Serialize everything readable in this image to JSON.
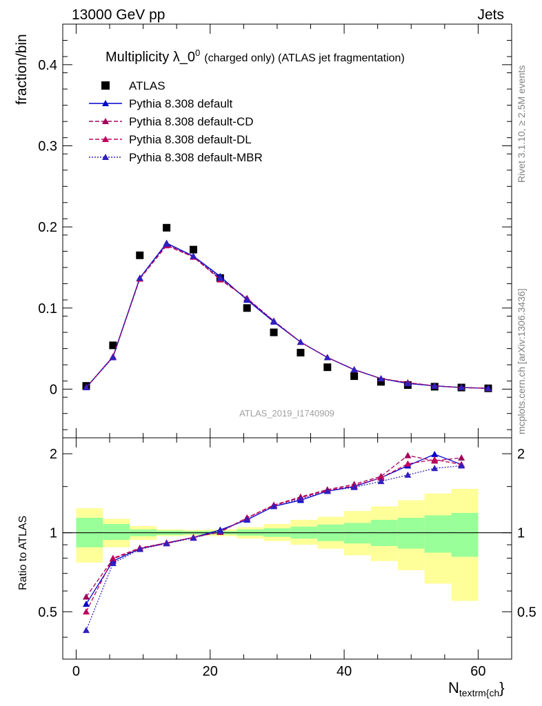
{
  "header": {
    "left": "13000 GeV pp",
    "right": "Jets"
  },
  "title": {
    "main": "Multiplicity λ_0",
    "sup": "0",
    "tail": "(charged only) (ATLAS jet fragmentation)"
  },
  "side_labels": {
    "rivet": "Rivet 3.1.10, ≥ 2.5M events",
    "mcplots": "mcplots.cern.ch [arXiv:1306.3436]"
  },
  "watermark": "ATLAS_2019_I1740909",
  "colors": {
    "data": "#000000",
    "default": "#0000cc",
    "cd": "#a0005a",
    "dl": "#c0005a",
    "mbr": "#3020c0",
    "band_inner": "#99ff99",
    "band_outer": "#ffff99"
  },
  "chart_data": [
    {
      "type": "scatter",
      "panel": "main",
      "ylabel": "fraction/bin",
      "xlim": [
        -2,
        65
      ],
      "ylim": [
        -0.06,
        0.45
      ],
      "yticks": [
        0,
        0.1,
        0.2,
        0.3,
        0.4
      ],
      "ytick_labels": [
        "0",
        "0.1",
        "0.2",
        "0.3",
        "0.4"
      ],
      "x": [
        1.5,
        5.5,
        9.5,
        13.5,
        17.5,
        21.5,
        25.5,
        29.5,
        33.5,
        37.5,
        41.5,
        45.5,
        49.5,
        53.5,
        57.5,
        61.5
      ],
      "series": [
        {
          "name": "ATLAS",
          "key": "data",
          "style": "square",
          "values": [
            0.004,
            0.054,
            0.165,
            0.199,
            0.172,
            0.137,
            0.1,
            0.07,
            0.045,
            0.027,
            0.016,
            0.009,
            0.005,
            0.003,
            0.002,
            0.001
          ]
        },
        {
          "name": "Pythia 8.308 default",
          "key": "default",
          "style": "solid",
          "values": [
            0.002,
            0.04,
            0.137,
            0.18,
            0.164,
            0.139,
            0.11,
            0.083,
            0.058,
            0.039,
            0.024,
            0.013,
            0.007,
            0.004,
            0.002,
            0.001
          ]
        },
        {
          "name": "Pythia 8.308 default-CD",
          "key": "cd",
          "style": "dashed",
          "values": [
            0.002,
            0.04,
            0.136,
            0.178,
            0.163,
            0.136,
            0.112,
            0.084,
            0.058,
            0.039,
            0.024,
            0.013,
            0.008,
            0.004,
            0.002,
            0.001
          ]
        },
        {
          "name": "Pythia 8.308 default-DL",
          "key": "dl",
          "style": "dashed",
          "values": [
            0.002,
            0.04,
            0.136,
            0.177,
            0.163,
            0.135,
            0.112,
            0.084,
            0.058,
            0.039,
            0.024,
            0.013,
            0.008,
            0.004,
            0.002,
            0.001
          ]
        },
        {
          "name": "Pythia 8.308 default-MBR",
          "key": "mbr",
          "style": "dotted",
          "values": [
            0.002,
            0.039,
            0.137,
            0.179,
            0.164,
            0.137,
            0.111,
            0.084,
            0.058,
            0.039,
            0.024,
            0.013,
            0.007,
            0.004,
            0.002,
            0.001
          ]
        }
      ]
    },
    {
      "type": "line",
      "panel": "ratio",
      "ylabel": "Ratio to ATLAS",
      "xlabel": "N_textrm{ch}",
      "xlim": [
        -2,
        65
      ],
      "ylim": [
        0.33,
        2.3
      ],
      "yticks": [
        0.5,
        1,
        2
      ],
      "ytick_labels": [
        "0.5",
        "1",
        "2"
      ],
      "xticks": [
        0,
        20,
        40,
        60
      ],
      "xtick_labels": [
        "0",
        "20",
        "40",
        "60"
      ],
      "bins": [
        [
          0,
          4
        ],
        [
          4,
          8
        ],
        [
          8,
          12
        ],
        [
          12,
          16
        ],
        [
          16,
          20
        ],
        [
          20,
          24
        ],
        [
          24,
          28
        ],
        [
          28,
          32
        ],
        [
          32,
          36
        ],
        [
          36,
          40
        ],
        [
          40,
          44
        ],
        [
          44,
          48
        ],
        [
          48,
          52
        ],
        [
          52,
          56
        ],
        [
          56,
          60
        ]
      ],
      "band_inner": [
        [
          0.88,
          1.14
        ],
        [
          0.94,
          1.08
        ],
        [
          0.97,
          1.03
        ],
        [
          0.98,
          1.02
        ],
        [
          0.985,
          1.015
        ],
        [
          0.985,
          1.015
        ],
        [
          0.975,
          1.03
        ],
        [
          0.965,
          1.04
        ],
        [
          0.95,
          1.055
        ],
        [
          0.93,
          1.075
        ],
        [
          0.91,
          1.09
        ],
        [
          0.89,
          1.12
        ],
        [
          0.87,
          1.14
        ],
        [
          0.84,
          1.165
        ],
        [
          0.81,
          1.19
        ]
      ],
      "band_outer": [
        [
          0.77,
          1.24
        ],
        [
          0.88,
          1.13
        ],
        [
          0.94,
          1.06
        ],
        [
          0.97,
          1.03
        ],
        [
          0.975,
          1.025
        ],
        [
          0.97,
          1.03
        ],
        [
          0.95,
          1.05
        ],
        [
          0.93,
          1.08
        ],
        [
          0.9,
          1.12
        ],
        [
          0.87,
          1.15
        ],
        [
          0.82,
          1.21
        ],
        [
          0.78,
          1.26
        ],
        [
          0.72,
          1.33
        ],
        [
          0.64,
          1.41
        ],
        [
          0.55,
          1.47
        ]
      ],
      "series": [
        {
          "name": "Pythia 8.308 default",
          "key": "default",
          "values": [
            0.535,
            0.78,
            0.87,
            0.915,
            0.96,
            1.025,
            1.12,
            1.26,
            1.33,
            1.44,
            1.5,
            1.62,
            1.8,
            1.99,
            1.82
          ]
        },
        {
          "name": "Pythia 8.308 default-CD",
          "key": "cd",
          "values": [
            0.57,
            0.795,
            0.87,
            0.91,
            0.96,
            1.005,
            1.14,
            1.275,
            1.37,
            1.46,
            1.53,
            1.64,
            1.97,
            1.88,
            1.93
          ]
        },
        {
          "name": "Pythia 8.308 default-DL",
          "key": "dl",
          "values": [
            0.5,
            0.8,
            0.875,
            0.915,
            0.96,
            1.01,
            1.14,
            1.27,
            1.36,
            1.45,
            1.51,
            1.62,
            1.83,
            1.9,
            1.82
          ]
        },
        {
          "name": "Pythia 8.308 default-MBR",
          "key": "mbr",
          "values": [
            0.425,
            0.765,
            0.865,
            0.91,
            0.955,
            1.015,
            1.125,
            1.26,
            1.345,
            1.44,
            1.49,
            1.57,
            1.66,
            1.76,
            1.8
          ]
        }
      ]
    }
  ]
}
